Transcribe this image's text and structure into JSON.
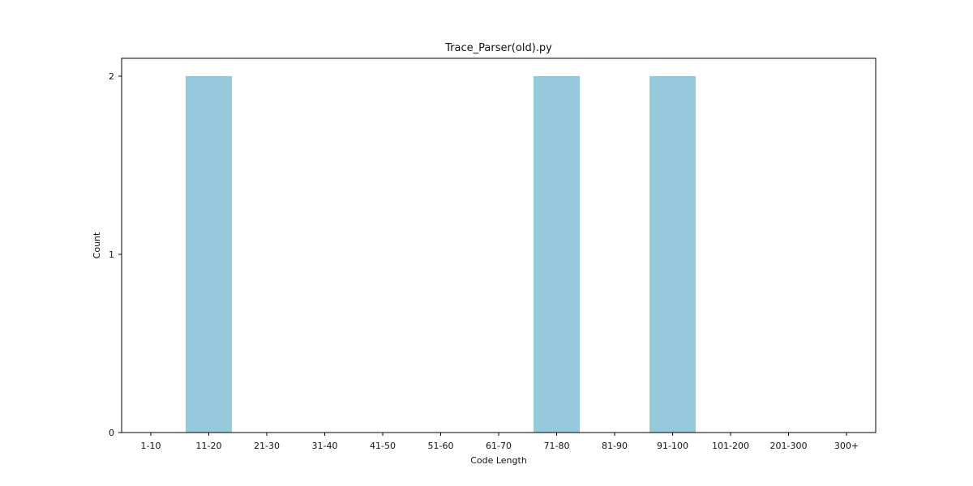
{
  "chart_data": {
    "type": "bar",
    "title": "Trace_Parser(old).py",
    "xlabel": "Code Length",
    "ylabel": "Count",
    "categories": [
      "1-10",
      "11-20",
      "21-30",
      "31-40",
      "41-50",
      "51-60",
      "61-70",
      "71-80",
      "81-90",
      "91-100",
      "101-200",
      "201-300",
      "300+"
    ],
    "values": [
      0,
      2,
      0,
      0,
      0,
      0,
      0,
      2,
      0,
      2,
      0,
      0,
      0
    ],
    "yticks": [
      "0",
      "1",
      "2"
    ],
    "ylim": [
      0,
      2.1
    ],
    "grid": false,
    "legend": false,
    "bar_color": "#96c9dc",
    "axis_color": "#000000"
  }
}
